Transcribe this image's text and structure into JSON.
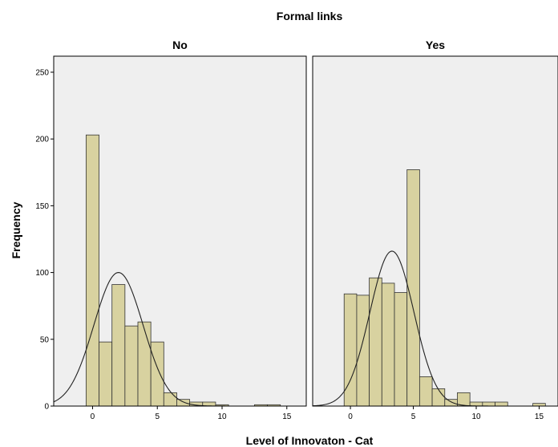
{
  "chart_data": {
    "type": "bar",
    "subtype": "histogram",
    "group_title": "Formal links",
    "xlabel": "Level of Innovaton - Cat",
    "ylabel": "Frequency",
    "bin_width": 1,
    "xlim": [
      -3,
      16.5
    ],
    "ylim": [
      0,
      262
    ],
    "x_ticks": [
      "0",
      "5",
      "10",
      "15"
    ],
    "y_ticks": [
      "0",
      "50",
      "100",
      "150",
      "200",
      "250"
    ],
    "grid": false,
    "bar_color": "#d8d2a0",
    "panel_background": "#efefef",
    "normal_curve": true,
    "panels": [
      {
        "title": "No",
        "bins": [
          0,
          1,
          2,
          3,
          4,
          5,
          6,
          7,
          8,
          9,
          10,
          11,
          12,
          13,
          14,
          15
        ],
        "values": [
          203,
          48,
          91,
          60,
          63,
          48,
          10,
          5,
          3,
          3,
          1,
          0,
          0,
          1,
          1,
          0
        ],
        "curve": {
          "mean": 2.0,
          "peak": 100,
          "sd": 1.9
        }
      },
      {
        "title": "Yes",
        "bins": [
          0,
          1,
          2,
          3,
          4,
          5,
          6,
          7,
          8,
          9,
          10,
          11,
          12,
          13,
          14,
          15
        ],
        "values": [
          84,
          83,
          96,
          92,
          85,
          177,
          22,
          13,
          5,
          10,
          3,
          3,
          3,
          0,
          0,
          2
        ],
        "curve": {
          "mean": 3.3,
          "peak": 116,
          "sd": 1.75
        }
      }
    ]
  }
}
